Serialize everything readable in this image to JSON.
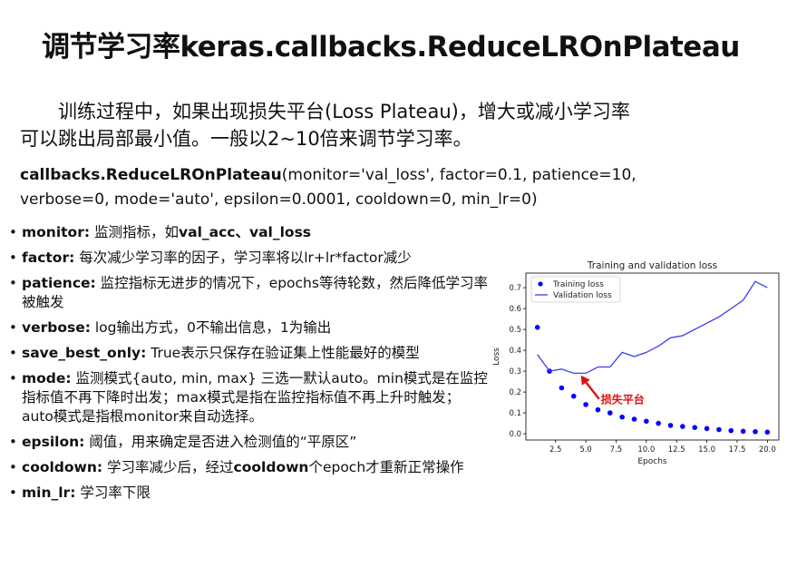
{
  "slide": {
    "title": "调节学习率keras.callbacks.ReduceLROnPlateau",
    "intro_line1": "训练过程中，如果出现损失平台(Loss Plateau)，增大或减小学习率",
    "intro_line2": "可以跳出局部最小值。一般以2~10倍来调节学习率。",
    "signature_name": "callbacks.ReduceLROnPlateau",
    "signature_args_line1": "(monitor='val_loss', factor=0.1, patience=10,",
    "signature_args_line2": "verbose=0, mode='auto', epsilon=0.0001, cooldown=0, min_lr=0)"
  },
  "params": [
    {
      "name": "monitor:",
      "text": " 监测指标，如",
      "hl1": "val_acc",
      "mid": "、",
      "hl2": "val_loss",
      "tail": ""
    },
    {
      "name": "factor:",
      "text": " 每次减少学习率的因子，学习率将以lr+lr*factor减少"
    },
    {
      "name": "patience:",
      "text": " 监控指标无进步的情况下，epochs等待轮数，然后降低学习率被触发"
    },
    {
      "name": "verbose:",
      "text": " log输出方式，0不输出信息，1为输出"
    },
    {
      "name": "save_best_only:",
      "text": " True表示只保存在验证集上性能最好的模型"
    },
    {
      "name": "mode:",
      "text": " 监测模式{auto, min, max} 三选一默认auto。min模式是在监控指标值不再下降时出发；max模式是指在监控指标值不再上升时触发；auto模式是指根monitor来自动选择。"
    },
    {
      "name": "epsilon:",
      "text": " 阈值，用来确定是否进入检测值的“平原区”"
    },
    {
      "name": "cooldown:",
      "text": " 学习率减少后，经过",
      "hl1": "cooldown",
      "tail": "个epoch才重新正常操作"
    },
    {
      "name": "min_lr:",
      "text": " 学习率下限"
    }
  ],
  "chart_data": {
    "type": "line",
    "title": "Training and validation loss",
    "xlabel": "Epochs",
    "ylabel": "Loss",
    "xlim": [
      0.05,
      20.95
    ],
    "ylim": [
      -0.03,
      0.77
    ],
    "xticks": [
      2.5,
      5.0,
      7.5,
      10.0,
      12.5,
      15.0,
      17.5,
      20.0
    ],
    "xtick_labels": [
      "2.5",
      "5.0",
      "7.5",
      "10.0",
      "12.5",
      "15.0",
      "17.5",
      "20.0"
    ],
    "yticks": [
      0.0,
      0.1,
      0.2,
      0.3,
      0.4,
      0.5,
      0.6,
      0.7
    ],
    "ytick_labels": [
      "0.0",
      "0.1",
      "0.2",
      "0.3",
      "0.4",
      "0.5",
      "0.6",
      "0.7"
    ],
    "legend_position": "top-left",
    "series": [
      {
        "name": "Training loss",
        "style": "dots",
        "color": "#0000ff",
        "x": [
          1,
          2,
          3,
          4,
          5,
          6,
          7,
          8,
          9,
          10,
          11,
          12,
          13,
          14,
          15,
          16,
          17,
          18,
          19,
          20
        ],
        "y": [
          0.51,
          0.3,
          0.22,
          0.18,
          0.14,
          0.115,
          0.1,
          0.08,
          0.07,
          0.06,
          0.05,
          0.04,
          0.035,
          0.03,
          0.025,
          0.02,
          0.015,
          0.012,
          0.01,
          0.008
        ]
      },
      {
        "name": "Validation loss",
        "style": "line",
        "color": "#3b3bf5",
        "x": [
          1,
          2,
          3,
          4,
          5,
          6,
          7,
          8,
          9,
          10,
          11,
          12,
          13,
          14,
          15,
          16,
          17,
          18,
          19,
          20
        ],
        "y": [
          0.38,
          0.3,
          0.31,
          0.29,
          0.29,
          0.32,
          0.32,
          0.39,
          0.37,
          0.39,
          0.42,
          0.46,
          0.47,
          0.5,
          0.53,
          0.56,
          0.6,
          0.64,
          0.73,
          0.7
        ]
      }
    ],
    "annotation": {
      "text": "损失平台",
      "color": "#e01010",
      "point_x": 4.6,
      "point_y": 0.28
    }
  }
}
